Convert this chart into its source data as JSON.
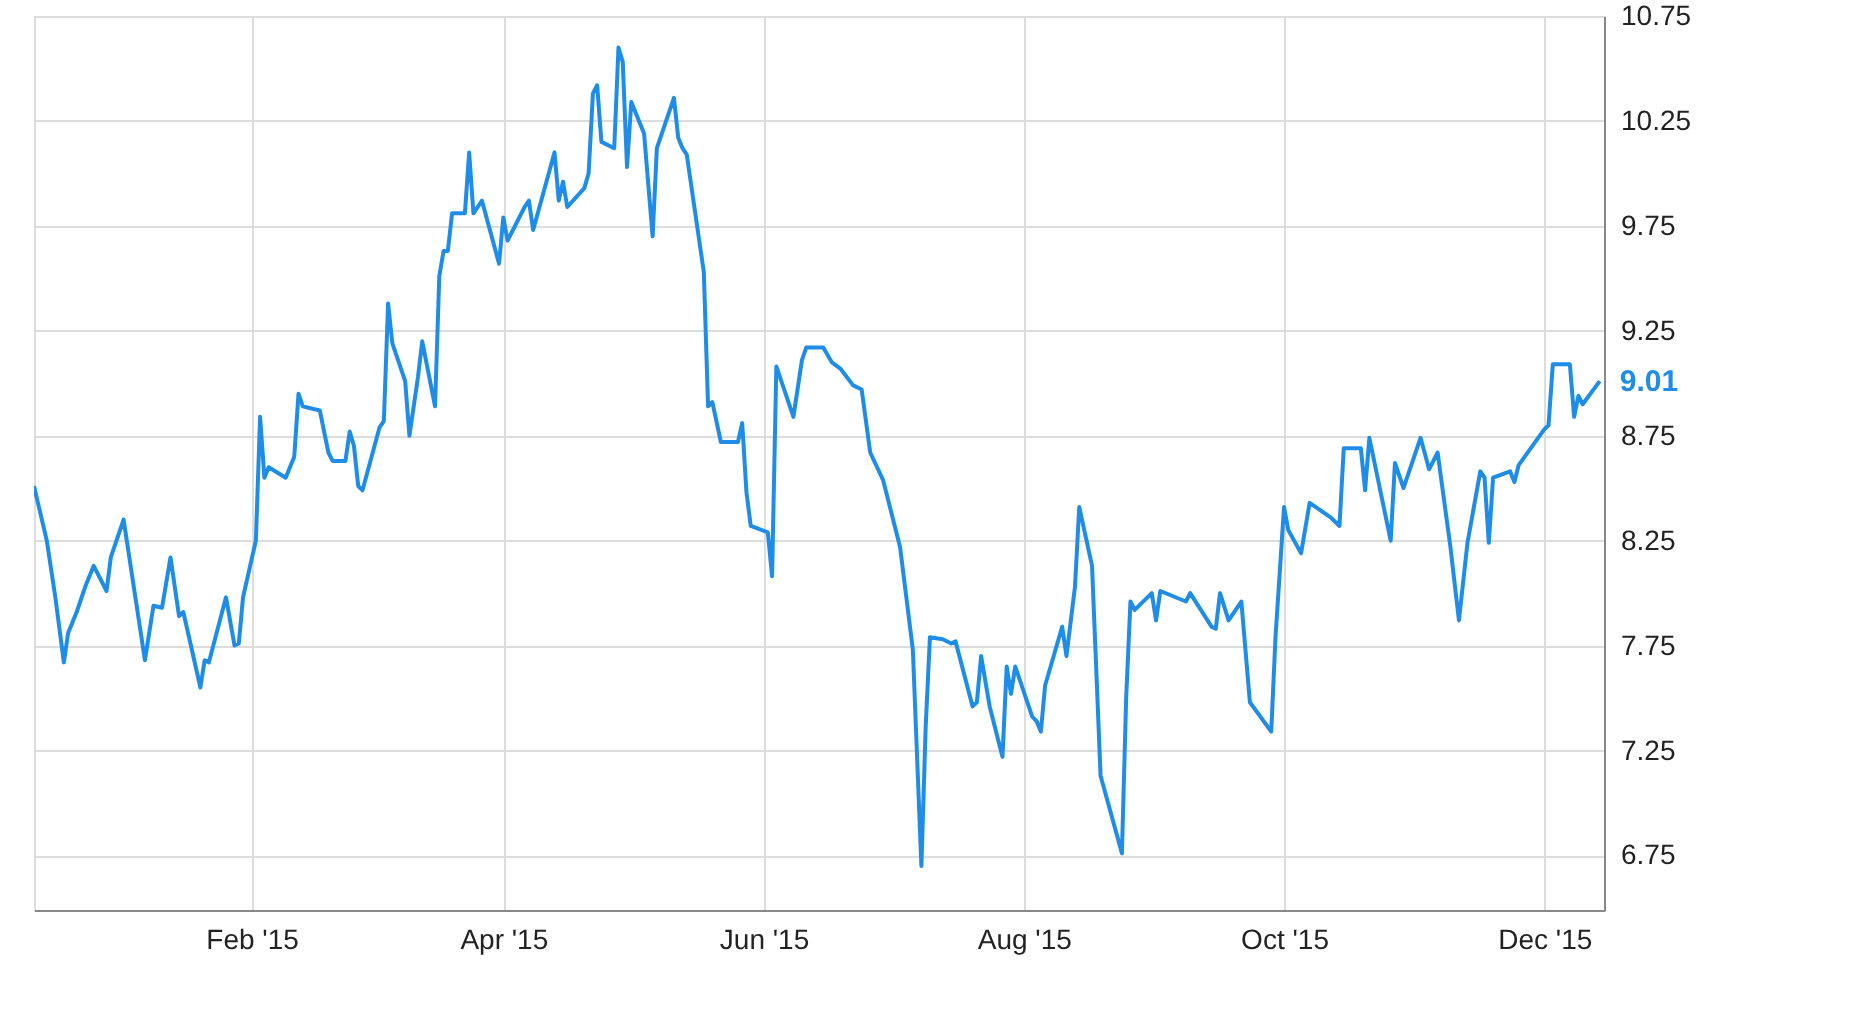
{
  "chart_data": {
    "type": "line",
    "x": [
      "2014-12-12",
      "2014-12-15",
      "2014-12-17",
      "2014-12-19",
      "2014-12-20",
      "2014-12-22",
      "2014-12-24",
      "2014-12-26",
      "2014-12-29",
      "2014-12-30",
      "2015-01-02",
      "2015-01-07",
      "2015-01-09",
      "2015-01-11",
      "2015-01-13",
      "2015-01-15",
      "2015-01-16",
      "2015-01-20",
      "2015-01-21",
      "2015-01-22",
      "2015-01-26",
      "2015-01-28",
      "2015-01-29",
      "2015-01-30",
      "2015-02-02",
      "2015-02-03",
      "2015-02-04",
      "2015-02-05",
      "2015-02-09",
      "2015-02-11",
      "2015-02-12",
      "2015-02-13",
      "2015-02-17",
      "2015-02-19",
      "2015-02-20",
      "2015-02-23",
      "2015-02-24",
      "2015-02-25",
      "2015-02-26",
      "2015-02-27",
      "2015-03-03",
      "2015-03-04",
      "2015-03-05",
      "2015-03-06",
      "2015-03-09",
      "2015-03-10",
      "2015-03-12",
      "2015-03-13",
      "2015-03-16",
      "2015-03-17",
      "2015-03-18",
      "2015-03-19",
      "2015-03-20",
      "2015-03-23",
      "2015-03-24",
      "2015-03-25",
      "2015-03-27",
      "2015-03-31",
      "2015-04-01",
      "2015-04-02",
      "2015-04-06",
      "2015-04-07",
      "2015-04-08",
      "2015-04-13",
      "2015-04-14",
      "2015-04-15",
      "2015-04-16",
      "2015-04-20",
      "2015-04-21",
      "2015-04-22",
      "2015-04-23",
      "2015-04-24",
      "2015-04-27",
      "2015-04-28",
      "2015-04-29",
      "2015-04-30",
      "2015-05-01",
      "2015-05-04",
      "2015-05-06",
      "2015-05-07",
      "2015-05-11",
      "2015-05-12",
      "2015-05-13",
      "2015-05-14",
      "2015-05-18",
      "2015-05-19",
      "2015-05-20",
      "2015-05-22",
      "2015-05-26",
      "2015-05-27",
      "2015-05-28",
      "2015-05-29",
      "2015-06-02",
      "2015-06-03",
      "2015-06-04",
      "2015-06-08",
      "2015-06-10",
      "2015-06-11",
      "2015-06-15",
      "2015-06-17",
      "2015-06-19",
      "2015-06-22",
      "2015-06-24",
      "2015-06-26",
      "2015-06-29",
      "2015-06-30",
      "2015-07-03",
      "2015-07-06",
      "2015-07-08",
      "2015-07-09",
      "2015-07-10",
      "2015-07-13",
      "2015-07-15",
      "2015-07-16",
      "2015-07-20",
      "2015-07-21",
      "2015-07-22",
      "2015-07-24",
      "2015-07-27",
      "2015-07-28",
      "2015-07-29",
      "2015-07-30",
      "2015-08-03",
      "2015-08-04",
      "2015-08-05",
      "2015-08-06",
      "2015-08-10",
      "2015-08-11",
      "2015-08-13",
      "2015-08-14",
      "2015-08-17",
      "2015-08-19",
      "2015-08-24",
      "2015-08-25",
      "2015-08-26",
      "2015-08-27",
      "2015-08-31",
      "2015-09-01",
      "2015-09-02",
      "2015-09-08",
      "2015-09-09",
      "2015-09-14",
      "2015-09-15",
      "2015-09-16",
      "2015-09-18",
      "2015-09-21",
      "2015-09-23",
      "2015-09-28",
      "2015-09-29",
      "2015-10-01",
      "2015-10-02",
      "2015-10-05",
      "2015-10-07",
      "2015-10-12",
      "2015-10-14",
      "2015-10-15",
      "2015-10-19",
      "2015-10-20",
      "2015-10-21",
      "2015-10-26",
      "2015-10-27",
      "2015-10-29",
      "2015-11-02",
      "2015-11-04",
      "2015-11-06",
      "2015-11-09",
      "2015-11-11",
      "2015-11-13",
      "2015-11-16",
      "2015-11-17",
      "2015-11-18",
      "2015-11-19",
      "2015-11-23",
      "2015-11-24",
      "2015-11-25",
      "2015-12-01",
      "2015-12-02",
      "2015-12-03",
      "2015-12-07",
      "2015-12-08",
      "2015-12-09",
      "2015-12-10",
      "2015-12-14"
    ],
    "series": [
      {
        "color": "#1f8de8",
        "values": [
          8.51,
          8.25,
          7.98,
          7.67,
          7.81,
          7.91,
          8.03,
          8.13,
          8.01,
          8.17,
          8.35,
          7.68,
          7.94,
          7.93,
          8.17,
          7.89,
          7.91,
          7.55,
          7.68,
          7.67,
          7.98,
          7.75,
          7.76,
          7.98,
          8.25,
          8.84,
          8.55,
          8.6,
          8.55,
          8.65,
          8.95,
          8.89,
          8.87,
          8.67,
          8.63,
          8.63,
          8.77,
          8.7,
          8.51,
          8.49,
          8.79,
          8.82,
          9.38,
          9.19,
          9.01,
          8.75,
          9.03,
          9.2,
          8.89,
          9.51,
          9.63,
          9.63,
          9.81,
          9.81,
          10.1,
          9.81,
          9.87,
          9.57,
          9.79,
          9.68,
          9.84,
          9.87,
          9.73,
          10.1,
          9.87,
          9.96,
          9.84,
          9.93,
          10.0,
          10.38,
          10.42,
          10.15,
          10.12,
          10.6,
          10.53,
          10.03,
          10.34,
          10.19,
          9.7,
          10.12,
          10.36,
          10.17,
          10.12,
          10.09,
          9.53,
          8.89,
          8.91,
          8.72,
          8.72,
          8.81,
          8.48,
          8.32,
          8.29,
          8.08,
          9.08,
          8.84,
          9.11,
          9.17,
          9.17,
          9.1,
          9.07,
          8.99,
          8.97,
          8.67,
          8.54,
          8.46,
          8.22,
          7.73,
          6.7,
          7.36,
          7.79,
          7.78,
          7.76,
          7.77,
          7.46,
          7.48,
          7.7,
          7.46,
          7.22,
          7.65,
          7.52,
          7.65,
          7.41,
          7.39,
          7.34,
          7.56,
          7.84,
          7.7,
          8.03,
          8.41,
          8.13,
          7.13,
          6.76,
          7.5,
          7.96,
          7.92,
          8.0,
          7.87,
          8.01,
          7.96,
          8.0,
          7.84,
          7.83,
          8.0,
          7.87,
          7.96,
          7.48,
          7.34,
          7.79,
          8.41,
          8.3,
          8.19,
          8.43,
          8.36,
          8.32,
          8.69,
          8.69,
          8.49,
          8.74,
          8.25,
          8.62,
          8.5,
          8.74,
          8.59,
          8.67,
          8.22,
          7.87,
          8.24,
          8.58,
          8.55,
          8.24,
          8.55,
          8.58,
          8.53,
          8.61,
          8.78,
          8.8,
          9.09,
          9.09,
          8.84,
          8.94,
          8.9,
          9.01
        ]
      }
    ],
    "xlim": [
      "2014-12-12",
      "2015-12-15"
    ],
    "xticks": [
      {
        "value": "2015-02-01",
        "label": "Feb '15"
      },
      {
        "value": "2015-04-01",
        "label": "Apr '15"
      },
      {
        "value": "2015-06-01",
        "label": "Jun '15"
      },
      {
        "value": "2015-08-01",
        "label": "Aug '15"
      },
      {
        "value": "2015-10-01",
        "label": "Oct '15"
      },
      {
        "value": "2015-12-01",
        "label": "Dec '15"
      }
    ],
    "ylim": [
      6.49,
      10.75
    ],
    "yticks": [
      6.75,
      7.25,
      7.75,
      8.25,
      8.75,
      9.25,
      9.75,
      10.25,
      10.75
    ],
    "grid": true,
    "marker": "none",
    "line_style": "solid",
    "annotations": [
      {
        "text": "9.01",
        "x": "2015-12-14",
        "y": 9.01
      }
    ]
  }
}
